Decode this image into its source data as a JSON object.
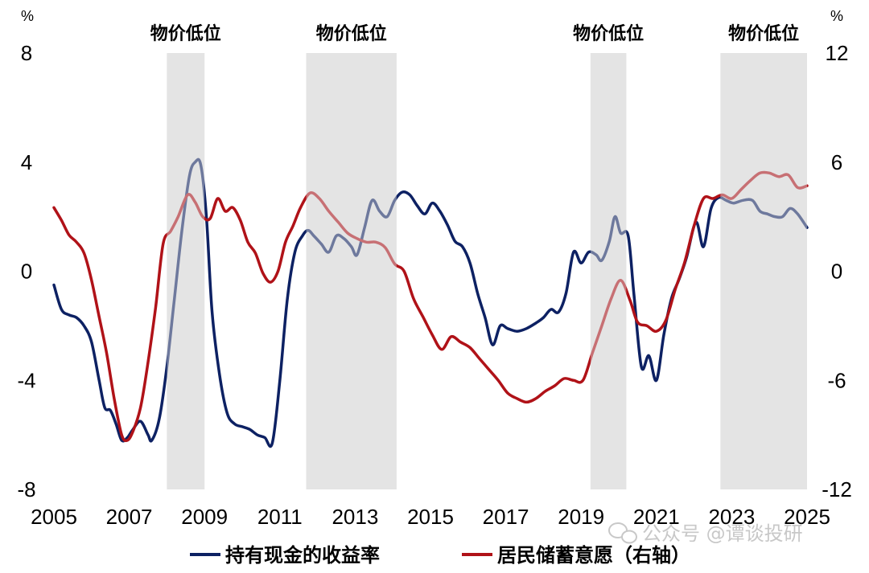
{
  "chart_data": {
    "type": "line",
    "y_unit_left": "%",
    "y_unit_right": "%",
    "ylim_left": [
      -8,
      8
    ],
    "ylim_right": [
      -12,
      12
    ],
    "yticks_left": [
      "8",
      "4",
      "0",
      "-4",
      "-8"
    ],
    "yticks_right": [
      "12",
      "6",
      "0",
      "-6",
      "-12"
    ],
    "xlim": [
      2005,
      2025
    ],
    "xticks": [
      "2005",
      "2007",
      "2009",
      "2011",
      "2013",
      "2015",
      "2017",
      "2019",
      "2021",
      "2023",
      "2025"
    ],
    "shaded_regions": [
      {
        "label": "物价低位",
        "start": 2008.0,
        "end": 2009.0
      },
      {
        "label": "物价低位",
        "start": 2011.7,
        "end": 2014.1
      },
      {
        "label": "物价低位",
        "start": 2019.25,
        "end": 2020.2
      },
      {
        "label": "物价低位",
        "start": 2022.7,
        "end": 2025.0
      }
    ],
    "series": [
      {
        "name": "持有现金的收益率",
        "axis": "left",
        "color": "#0d2163",
        "points": [
          [
            2005.0,
            -0.5
          ],
          [
            2005.2,
            -1.4
          ],
          [
            2005.4,
            -1.6
          ],
          [
            2005.6,
            -1.7
          ],
          [
            2005.8,
            -2.0
          ],
          [
            2006.0,
            -2.6
          ],
          [
            2006.2,
            -4.0
          ],
          [
            2006.35,
            -5.0
          ],
          [
            2006.5,
            -5.1
          ],
          [
            2006.65,
            -5.6
          ],
          [
            2006.8,
            -6.2
          ],
          [
            2006.95,
            -6.1
          ],
          [
            2007.1,
            -5.8
          ],
          [
            2007.3,
            -5.5
          ],
          [
            2007.5,
            -6.0
          ],
          [
            2007.6,
            -6.2
          ],
          [
            2007.8,
            -5.4
          ],
          [
            2008.0,
            -3.5
          ],
          [
            2008.2,
            -1.0
          ],
          [
            2008.4,
            1.5
          ],
          [
            2008.6,
            3.5
          ],
          [
            2008.75,
            4.0
          ],
          [
            2008.9,
            3.9
          ],
          [
            2009.05,
            2.0
          ],
          [
            2009.2,
            -1.5
          ],
          [
            2009.4,
            -3.8
          ],
          [
            2009.6,
            -5.2
          ],
          [
            2009.8,
            -5.6
          ],
          [
            2010.0,
            -5.7
          ],
          [
            2010.2,
            -5.8
          ],
          [
            2010.4,
            -6.0
          ],
          [
            2010.6,
            -6.1
          ],
          [
            2010.8,
            -6.3
          ],
          [
            2011.0,
            -4.0
          ],
          [
            2011.2,
            -1.0
          ],
          [
            2011.4,
            0.7
          ],
          [
            2011.6,
            1.3
          ],
          [
            2011.75,
            1.5
          ],
          [
            2011.9,
            1.3
          ],
          [
            2012.1,
            1.0
          ],
          [
            2012.3,
            0.7
          ],
          [
            2012.5,
            1.3
          ],
          [
            2012.7,
            1.2
          ],
          [
            2012.9,
            0.9
          ],
          [
            2013.05,
            0.6
          ],
          [
            2013.25,
            1.6
          ],
          [
            2013.45,
            2.6
          ],
          [
            2013.65,
            2.2
          ],
          [
            2013.85,
            2.0
          ],
          [
            2014.05,
            2.6
          ],
          [
            2014.25,
            2.9
          ],
          [
            2014.45,
            2.8
          ],
          [
            2014.65,
            2.4
          ],
          [
            2014.85,
            2.1
          ],
          [
            2015.05,
            2.5
          ],
          [
            2015.25,
            2.2
          ],
          [
            2015.45,
            1.7
          ],
          [
            2015.65,
            1.1
          ],
          [
            2015.85,
            0.9
          ],
          [
            2016.05,
            0.3
          ],
          [
            2016.25,
            -0.8
          ],
          [
            2016.45,
            -1.7
          ],
          [
            2016.65,
            -2.7
          ],
          [
            2016.85,
            -2.0
          ],
          [
            2017.05,
            -2.1
          ],
          [
            2017.3,
            -2.2
          ],
          [
            2017.55,
            -2.1
          ],
          [
            2017.8,
            -1.9
          ],
          [
            2018.0,
            -1.7
          ],
          [
            2018.2,
            -1.4
          ],
          [
            2018.4,
            -1.5
          ],
          [
            2018.6,
            -0.8
          ],
          [
            2018.8,
            0.7
          ],
          [
            2019.0,
            0.3
          ],
          [
            2019.2,
            0.7
          ],
          [
            2019.4,
            0.6
          ],
          [
            2019.55,
            0.4
          ],
          [
            2019.75,
            1.1
          ],
          [
            2019.9,
            2.0
          ],
          [
            2020.05,
            1.4
          ],
          [
            2020.25,
            1.3
          ],
          [
            2020.4,
            -0.8
          ],
          [
            2020.6,
            -3.5
          ],
          [
            2020.8,
            -3.1
          ],
          [
            2021.0,
            -4.0
          ],
          [
            2021.2,
            -2.3
          ],
          [
            2021.4,
            -1.0
          ],
          [
            2021.6,
            -0.3
          ],
          [
            2021.8,
            0.5
          ],
          [
            2022.05,
            1.8
          ],
          [
            2022.25,
            0.9
          ],
          [
            2022.45,
            2.3
          ],
          [
            2022.65,
            2.7
          ],
          [
            2022.85,
            2.6
          ],
          [
            2023.05,
            2.5
          ],
          [
            2023.3,
            2.6
          ],
          [
            2023.55,
            2.6
          ],
          [
            2023.75,
            2.2
          ],
          [
            2023.95,
            2.1
          ],
          [
            2024.15,
            2.0
          ],
          [
            2024.35,
            2.0
          ],
          [
            2024.55,
            2.3
          ],
          [
            2024.75,
            2.1
          ],
          [
            2025.0,
            1.6
          ]
        ]
      },
      {
        "name": "居民储蓄意愿（右轴）",
        "axis": "right",
        "color": "#b01218",
        "points": [
          [
            2005.0,
            3.5
          ],
          [
            2005.2,
            2.8
          ],
          [
            2005.4,
            2.0
          ],
          [
            2005.6,
            1.6
          ],
          [
            2005.8,
            1.0
          ],
          [
            2006.0,
            -0.5
          ],
          [
            2006.2,
            -2.5
          ],
          [
            2006.4,
            -4.5
          ],
          [
            2006.6,
            -7.0
          ],
          [
            2006.8,
            -9.0
          ],
          [
            2006.95,
            -9.3
          ],
          [
            2007.1,
            -8.8
          ],
          [
            2007.3,
            -7.5
          ],
          [
            2007.5,
            -5.0
          ],
          [
            2007.7,
            -2.0
          ],
          [
            2007.9,
            1.5
          ],
          [
            2008.1,
            2.2
          ],
          [
            2008.3,
            3.0
          ],
          [
            2008.55,
            4.2
          ],
          [
            2008.75,
            3.8
          ],
          [
            2008.95,
            3.0
          ],
          [
            2009.15,
            2.9
          ],
          [
            2009.35,
            4.0
          ],
          [
            2009.55,
            3.3
          ],
          [
            2009.75,
            3.5
          ],
          [
            2009.95,
            2.8
          ],
          [
            2010.15,
            1.6
          ],
          [
            2010.35,
            1.0
          ],
          [
            2010.55,
            -0.1
          ],
          [
            2010.75,
            -0.6
          ],
          [
            2010.95,
            0.0
          ],
          [
            2011.15,
            1.6
          ],
          [
            2011.35,
            2.5
          ],
          [
            2011.55,
            3.5
          ],
          [
            2011.8,
            4.3
          ],
          [
            2012.05,
            4.0
          ],
          [
            2012.3,
            3.3
          ],
          [
            2012.55,
            2.7
          ],
          [
            2012.8,
            2.1
          ],
          [
            2013.05,
            1.8
          ],
          [
            2013.3,
            1.6
          ],
          [
            2013.55,
            1.6
          ],
          [
            2013.8,
            1.3
          ],
          [
            2014.05,
            0.4
          ],
          [
            2014.3,
            0.0
          ],
          [
            2014.55,
            -1.5
          ],
          [
            2014.8,
            -2.5
          ],
          [
            2015.05,
            -3.5
          ],
          [
            2015.3,
            -4.3
          ],
          [
            2015.55,
            -3.6
          ],
          [
            2015.8,
            -3.9
          ],
          [
            2016.05,
            -4.2
          ],
          [
            2016.3,
            -4.8
          ],
          [
            2016.55,
            -5.4
          ],
          [
            2016.8,
            -6.0
          ],
          [
            2017.05,
            -6.7
          ],
          [
            2017.3,
            -7.0
          ],
          [
            2017.55,
            -7.2
          ],
          [
            2017.8,
            -7.0
          ],
          [
            2018.05,
            -6.6
          ],
          [
            2018.3,
            -6.3
          ],
          [
            2018.55,
            -5.9
          ],
          [
            2018.8,
            -6.0
          ],
          [
            2019.05,
            -6.0
          ],
          [
            2019.3,
            -4.5
          ],
          [
            2019.55,
            -3.0
          ],
          [
            2019.8,
            -1.5
          ],
          [
            2020.05,
            -0.5
          ],
          [
            2020.3,
            -1.6
          ],
          [
            2020.5,
            -2.8
          ],
          [
            2020.75,
            -3.0
          ],
          [
            2021.0,
            -3.3
          ],
          [
            2021.25,
            -2.7
          ],
          [
            2021.5,
            -1.0
          ],
          [
            2021.75,
            0.5
          ],
          [
            2022.0,
            2.5
          ],
          [
            2022.25,
            4.0
          ],
          [
            2022.5,
            4.0
          ],
          [
            2022.75,
            4.2
          ],
          [
            2023.0,
            4.0
          ],
          [
            2023.25,
            4.5
          ],
          [
            2023.5,
            5.0
          ],
          [
            2023.75,
            5.4
          ],
          [
            2024.0,
            5.4
          ],
          [
            2024.25,
            5.2
          ],
          [
            2024.5,
            5.3
          ],
          [
            2024.75,
            4.6
          ],
          [
            2025.0,
            4.7
          ]
        ]
      }
    ]
  },
  "watermark": "公众号 @谭谈投研"
}
